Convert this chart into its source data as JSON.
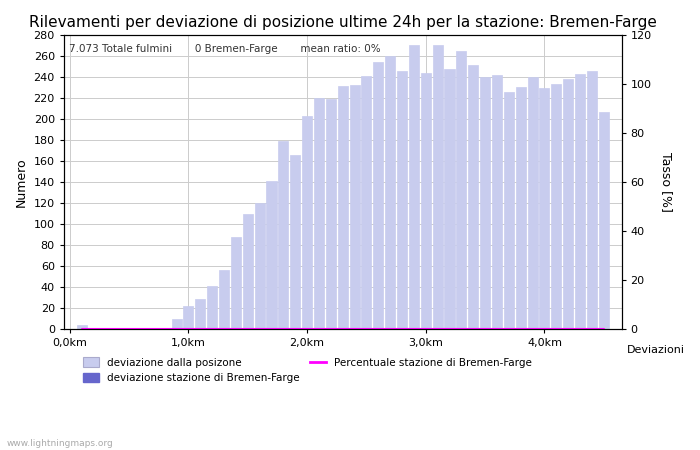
{
  "title": "Rilevamenti per deviazione di posizione ultime 24h per la stazione: Bremen-Farge",
  "ylabel_left": "Numero",
  "ylabel_right": "Tasso [%]",
  "xlabel": "Deviazioni",
  "annotation": "7.073 Totale fulmini       0 Bremen-Farge       mean ratio: 0%",
  "watermark": "www.lightningmaps.org",
  "bar_positions": [
    0.1,
    0.2,
    0.3,
    0.4,
    0.5,
    0.6,
    0.7,
    0.8,
    0.9,
    1.0,
    1.1,
    1.2,
    1.3,
    1.4,
    1.5,
    1.6,
    1.7,
    1.8,
    1.9,
    2.0,
    2.1,
    2.2,
    2.3,
    2.4,
    2.5,
    2.6,
    2.7,
    2.8,
    2.9,
    3.0,
    3.1,
    3.2,
    3.3,
    3.4,
    3.5,
    3.6,
    3.7,
    3.8,
    3.9,
    4.0,
    4.1,
    4.2,
    4.3,
    4.4,
    4.5
  ],
  "bar_values": [
    3,
    0,
    0,
    0,
    0,
    0,
    0,
    0,
    9,
    22,
    28,
    41,
    56,
    87,
    109,
    120,
    141,
    179,
    166,
    203,
    220,
    219,
    232,
    233,
    241,
    255,
    260,
    246,
    271,
    244,
    271,
    248,
    265,
    252,
    240,
    242,
    226,
    231,
    240,
    230,
    234,
    238,
    243,
    246,
    207
  ],
  "bar_color": "#c8ccee",
  "bar_color_station": "#6666cc",
  "line_color": "#ff00ff",
  "ylim_left": [
    0,
    280
  ],
  "ylim_right": [
    0,
    120
  ],
  "xticks": [
    0.0,
    1.0,
    2.0,
    3.0,
    4.0
  ],
  "xtick_labels": [
    "0,0km",
    "1,0km",
    "2,0km",
    "3,0km",
    "4,0km"
  ],
  "yticks_left": [
    0,
    20,
    40,
    60,
    80,
    100,
    120,
    140,
    160,
    180,
    200,
    220,
    240,
    260,
    280
  ],
  "yticks_right": [
    0,
    20,
    40,
    60,
    80,
    100,
    120
  ],
  "grid_color": "#cccccc",
  "bg_color": "#ffffff",
  "title_fontsize": 11,
  "label_fontsize": 9,
  "tick_fontsize": 8,
  "bar_width": 0.085
}
